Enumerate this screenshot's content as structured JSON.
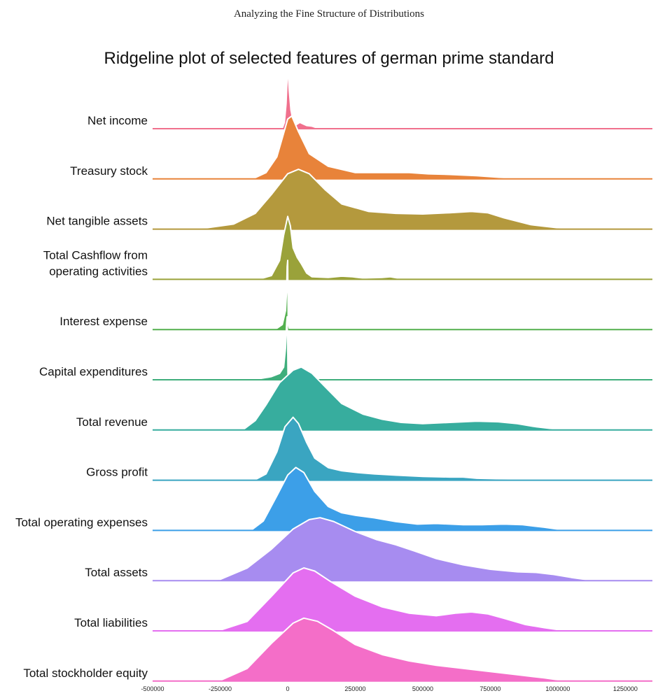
{
  "page": {
    "header": "Analyzing the Fine Structure of Distributions"
  },
  "chart_data": {
    "type": "ridgeline",
    "title": "Ridgeline plot of selected features of german prime standard",
    "xlabel": "",
    "ylabel": "",
    "xlim": [
      -500000,
      1350000
    ],
    "x_ticks": [
      -500000,
      -250000,
      0,
      250000,
      500000,
      750000,
      1000000,
      1250000
    ],
    "x_tick_labels": [
      "-500000",
      "-250000",
      "0",
      "250000",
      "500000",
      "750000",
      "1000000",
      "1250000"
    ],
    "grid": false,
    "legend": "none",
    "series": [
      {
        "label_lines": [
          "Net income"
        ],
        "color": "#f0708d",
        "density": [
          [
            -500000,
            0
          ],
          [
            -30000,
            0
          ],
          [
            -20000,
            0.01
          ],
          [
            -12000,
            0.1
          ],
          [
            -6000,
            0.4
          ],
          [
            0,
            1.0
          ],
          [
            6000,
            0.6
          ],
          [
            12000,
            0.3
          ],
          [
            20000,
            0.12
          ],
          [
            30000,
            0.06
          ],
          [
            45000,
            0.1
          ],
          [
            55000,
            0.08
          ],
          [
            70000,
            0.05
          ],
          [
            90000,
            0.04
          ],
          [
            110000,
            0.01
          ],
          [
            150000,
            0.005
          ],
          [
            300000,
            0.003
          ],
          [
            500000,
            0.002
          ],
          [
            640000,
            0.01
          ],
          [
            700000,
            0.002
          ],
          [
            1000000,
            0.001
          ],
          [
            1350000,
            0
          ]
        ]
      },
      {
        "label_lines": [
          "Treasury stock"
        ],
        "color": "#e8833a",
        "density": [
          [
            -500000,
            0
          ],
          [
            -120000,
            0.02
          ],
          [
            -80000,
            0.1
          ],
          [
            -40000,
            0.35
          ],
          [
            -20000,
            0.65
          ],
          [
            0,
            0.95
          ],
          [
            15000,
            1.0
          ],
          [
            40000,
            0.75
          ],
          [
            80000,
            0.4
          ],
          [
            150000,
            0.2
          ],
          [
            250000,
            0.1
          ],
          [
            300000,
            0.1
          ],
          [
            380000,
            0.1
          ],
          [
            450000,
            0.1
          ],
          [
            520000,
            0.08
          ],
          [
            600000,
            0.07
          ],
          [
            650000,
            0.06
          ],
          [
            700000,
            0.05
          ],
          [
            800000,
            0.02
          ],
          [
            900000,
            0.01
          ],
          [
            1000000,
            0.005
          ],
          [
            1350000,
            0
          ]
        ]
      },
      {
        "label_lines": [
          "Net tangible assets"
        ],
        "color": "#b4993d",
        "density": [
          [
            -500000,
            0
          ],
          [
            -300000,
            0.02
          ],
          [
            -200000,
            0.08
          ],
          [
            -120000,
            0.25
          ],
          [
            -60000,
            0.55
          ],
          [
            0,
            0.88
          ],
          [
            40000,
            0.95
          ],
          [
            80000,
            0.88
          ],
          [
            140000,
            0.62
          ],
          [
            200000,
            0.4
          ],
          [
            300000,
            0.28
          ],
          [
            400000,
            0.25
          ],
          [
            500000,
            0.24
          ],
          [
            600000,
            0.26
          ],
          [
            680000,
            0.28
          ],
          [
            740000,
            0.26
          ],
          [
            800000,
            0.18
          ],
          [
            900000,
            0.07
          ],
          [
            1000000,
            0.02
          ],
          [
            1100000,
            0
          ],
          [
            1350000,
            0
          ]
        ]
      },
      {
        "label_lines": [
          "Total Cashflow from",
          "operating activities"
        ],
        "color": "#9aa23a",
        "density": [
          [
            -500000,
            0
          ],
          [
            -100000,
            0.01
          ],
          [
            -60000,
            0.06
          ],
          [
            -30000,
            0.3
          ],
          [
            -15000,
            0.7
          ],
          [
            0,
            1.0
          ],
          [
            10000,
            0.85
          ],
          [
            20000,
            0.5
          ],
          [
            35000,
            0.35
          ],
          [
            50000,
            0.25
          ],
          [
            70000,
            0.1
          ],
          [
            90000,
            0.04
          ],
          [
            150000,
            0.03
          ],
          [
            200000,
            0.05
          ],
          [
            240000,
            0.04
          ],
          [
            280000,
            0.02
          ],
          [
            350000,
            0.03
          ],
          [
            380000,
            0.04
          ],
          [
            420000,
            0.01
          ],
          [
            550000,
            0.005
          ],
          [
            640000,
            0.02
          ],
          [
            700000,
            0.003
          ],
          [
            1350000,
            0
          ]
        ]
      },
      {
        "label_lines": [
          "Interest expense"
        ],
        "color": "#53b04f",
        "density": [
          [
            -500000,
            0
          ],
          [
            -80000,
            0
          ],
          [
            -60000,
            0.01
          ],
          [
            -40000,
            0.02
          ],
          [
            -20000,
            0.08
          ],
          [
            -8000,
            0.3
          ],
          [
            -4000,
            0.6
          ],
          [
            -2000,
            1.0
          ],
          [
            0,
            1.1
          ],
          [
            2000,
            0.1
          ],
          [
            6000,
            0.02
          ],
          [
            20000,
            0.005
          ],
          [
            1350000,
            0
          ]
        ]
      },
      {
        "label_lines": [
          "Capital expenditures"
        ],
        "color": "#3fae7c",
        "density": [
          [
            -500000,
            0
          ],
          [
            -200000,
            0.005
          ],
          [
            -150000,
            0.01
          ],
          [
            -100000,
            0.02
          ],
          [
            -60000,
            0.05
          ],
          [
            -30000,
            0.1
          ],
          [
            -15000,
            0.2
          ],
          [
            -8000,
            0.5
          ],
          [
            -4000,
            0.9
          ],
          [
            -2000,
            1.0
          ],
          [
            0,
            0.5
          ],
          [
            1000,
            0.05
          ],
          [
            5000,
            0
          ],
          [
            1350000,
            0
          ]
        ]
      },
      {
        "label_lines": [
          "Total revenue"
        ],
        "color": "#37ad9e",
        "density": [
          [
            -500000,
            0
          ],
          [
            -160000,
            0.02
          ],
          [
            -120000,
            0.15
          ],
          [
            -80000,
            0.4
          ],
          [
            -30000,
            0.75
          ],
          [
            20000,
            0.95
          ],
          [
            50000,
            1.0
          ],
          [
            90000,
            0.9
          ],
          [
            140000,
            0.68
          ],
          [
            200000,
            0.42
          ],
          [
            280000,
            0.25
          ],
          [
            350000,
            0.17
          ],
          [
            420000,
            0.12
          ],
          [
            500000,
            0.1
          ],
          [
            600000,
            0.12
          ],
          [
            700000,
            0.14
          ],
          [
            780000,
            0.13
          ],
          [
            850000,
            0.1
          ],
          [
            920000,
            0.05
          ],
          [
            1000000,
            0.01
          ],
          [
            1100000,
            0
          ],
          [
            1350000,
            0
          ]
        ]
      },
      {
        "label_lines": [
          "Gross profit"
        ],
        "color": "#3aa5c1",
        "density": [
          [
            -500000,
            0
          ],
          [
            -120000,
            0.01
          ],
          [
            -80000,
            0.1
          ],
          [
            -40000,
            0.45
          ],
          [
            -10000,
            0.85
          ],
          [
            20000,
            1.0
          ],
          [
            40000,
            0.9
          ],
          [
            70000,
            0.6
          ],
          [
            100000,
            0.35
          ],
          [
            150000,
            0.2
          ],
          [
            200000,
            0.15
          ],
          [
            260000,
            0.12
          ],
          [
            320000,
            0.1
          ],
          [
            400000,
            0.08
          ],
          [
            500000,
            0.06
          ],
          [
            600000,
            0.05
          ],
          [
            650000,
            0.05
          ],
          [
            700000,
            0.03
          ],
          [
            800000,
            0.02
          ],
          [
            900000,
            0.01
          ],
          [
            1000000,
            0.005
          ],
          [
            1350000,
            0
          ]
        ]
      },
      {
        "label_lines": [
          "Total operating expenses"
        ],
        "color": "#3c9fe8",
        "density": [
          [
            -500000,
            0
          ],
          [
            -130000,
            0.02
          ],
          [
            -90000,
            0.15
          ],
          [
            -40000,
            0.55
          ],
          [
            0,
            0.88
          ],
          [
            30000,
            1.0
          ],
          [
            60000,
            0.92
          ],
          [
            100000,
            0.62
          ],
          [
            150000,
            0.38
          ],
          [
            200000,
            0.28
          ],
          [
            250000,
            0.24
          ],
          [
            320000,
            0.2
          ],
          [
            400000,
            0.14
          ],
          [
            480000,
            0.1
          ],
          [
            550000,
            0.11
          ],
          [
            650000,
            0.09
          ],
          [
            720000,
            0.09
          ],
          [
            800000,
            0.1
          ],
          [
            870000,
            0.09
          ],
          [
            950000,
            0.05
          ],
          [
            1000000,
            0.02
          ],
          [
            1100000,
            0
          ],
          [
            1350000,
            0
          ]
        ]
      },
      {
        "label_lines": [
          "Total assets"
        ],
        "color": "#a78cf0",
        "density": [
          [
            -500000,
            0
          ],
          [
            -250000,
            0.02
          ],
          [
            -150000,
            0.2
          ],
          [
            -60000,
            0.5
          ],
          [
            20000,
            0.82
          ],
          [
            80000,
            0.97
          ],
          [
            120000,
            1.0
          ],
          [
            170000,
            0.94
          ],
          [
            250000,
            0.78
          ],
          [
            330000,
            0.65
          ],
          [
            400000,
            0.57
          ],
          [
            470000,
            0.47
          ],
          [
            550000,
            0.35
          ],
          [
            650000,
            0.25
          ],
          [
            750000,
            0.18
          ],
          [
            850000,
            0.14
          ],
          [
            920000,
            0.13
          ],
          [
            980000,
            0.1
          ],
          [
            1050000,
            0.05
          ],
          [
            1100000,
            0.02
          ],
          [
            1150000,
            0
          ],
          [
            1350000,
            0
          ]
        ]
      },
      {
        "label_lines": [
          "Total liabilities"
        ],
        "color": "#e46ef0",
        "density": [
          [
            -500000,
            0
          ],
          [
            -250000,
            0.01
          ],
          [
            -150000,
            0.15
          ],
          [
            -60000,
            0.55
          ],
          [
            20000,
            0.92
          ],
          [
            60000,
            1.0
          ],
          [
            100000,
            0.95
          ],
          [
            160000,
            0.78
          ],
          [
            250000,
            0.55
          ],
          [
            350000,
            0.38
          ],
          [
            450000,
            0.28
          ],
          [
            550000,
            0.24
          ],
          [
            620000,
            0.28
          ],
          [
            680000,
            0.3
          ],
          [
            740000,
            0.27
          ],
          [
            800000,
            0.2
          ],
          [
            880000,
            0.1
          ],
          [
            950000,
            0.05
          ],
          [
            1000000,
            0.02
          ],
          [
            1100000,
            0
          ],
          [
            1350000,
            0
          ]
        ]
      },
      {
        "label_lines": [
          "Total stockholder equity"
        ],
        "color": "#f46ec8",
        "density": [
          [
            -500000,
            0
          ],
          [
            -250000,
            0.01
          ],
          [
            -150000,
            0.2
          ],
          [
            -60000,
            0.6
          ],
          [
            20000,
            0.92
          ],
          [
            60000,
            1.0
          ],
          [
            110000,
            0.95
          ],
          [
            170000,
            0.8
          ],
          [
            250000,
            0.58
          ],
          [
            350000,
            0.42
          ],
          [
            450000,
            0.32
          ],
          [
            550000,
            0.25
          ],
          [
            650000,
            0.2
          ],
          [
            750000,
            0.15
          ],
          [
            850000,
            0.1
          ],
          [
            950000,
            0.05
          ],
          [
            1000000,
            0.02
          ],
          [
            1100000,
            0
          ],
          [
            1350000,
            0
          ]
        ]
      }
    ]
  }
}
